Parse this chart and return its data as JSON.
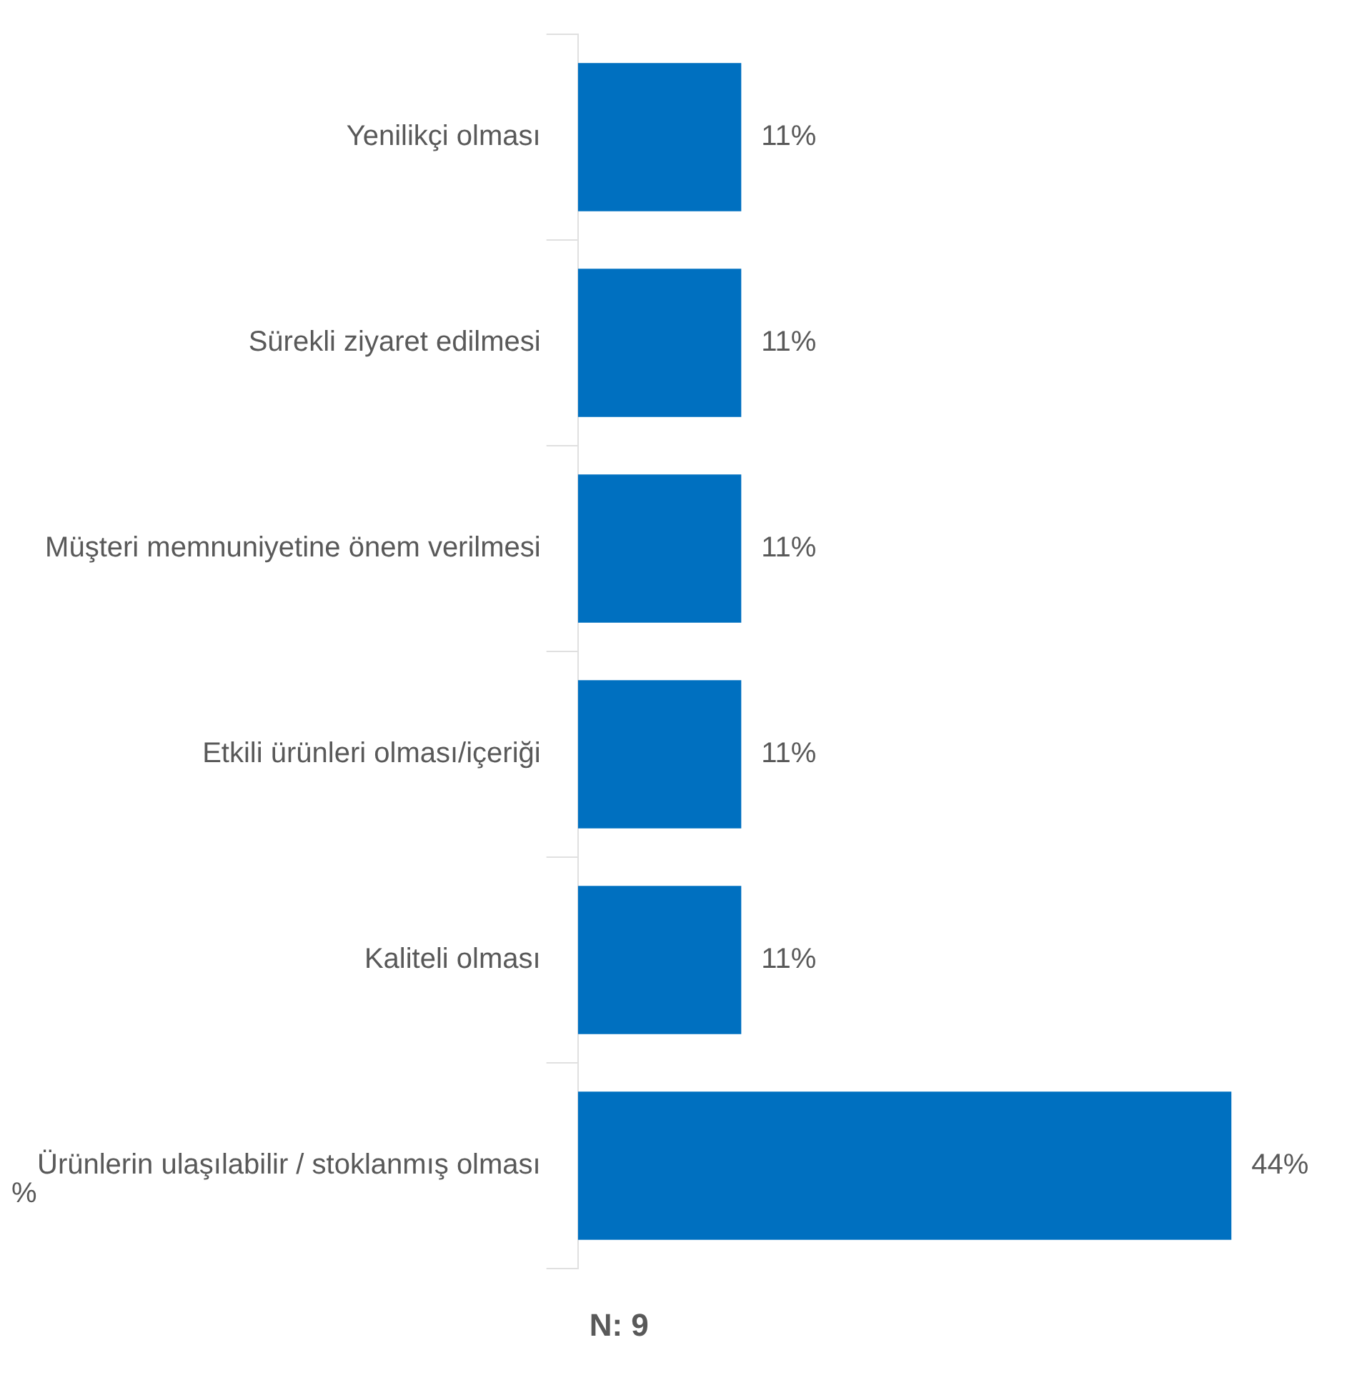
{
  "chart_data": {
    "type": "bar",
    "orientation": "horizontal",
    "categories": [
      "Yenilikçi olması",
      "Sürekli ziyaret edilmesi",
      "Müşteri memnuniyetine önem verilmesi",
      "Etkili ürünleri olması/içeriği",
      "Kaliteli olması",
      "Ürünlerin ulaşılabilir / stoklanmış olması"
    ],
    "values": [
      11,
      11,
      11,
      11,
      11,
      44
    ],
    "color": "#0070c0",
    "value_labels": [
      "11%",
      "11%",
      "11%",
      "11%",
      "11%",
      "44%"
    ],
    "tick_labels": "y",
    "grid": false,
    "legend": false,
    "annotations": [
      "N: 9",
      "%"
    ]
  }
}
